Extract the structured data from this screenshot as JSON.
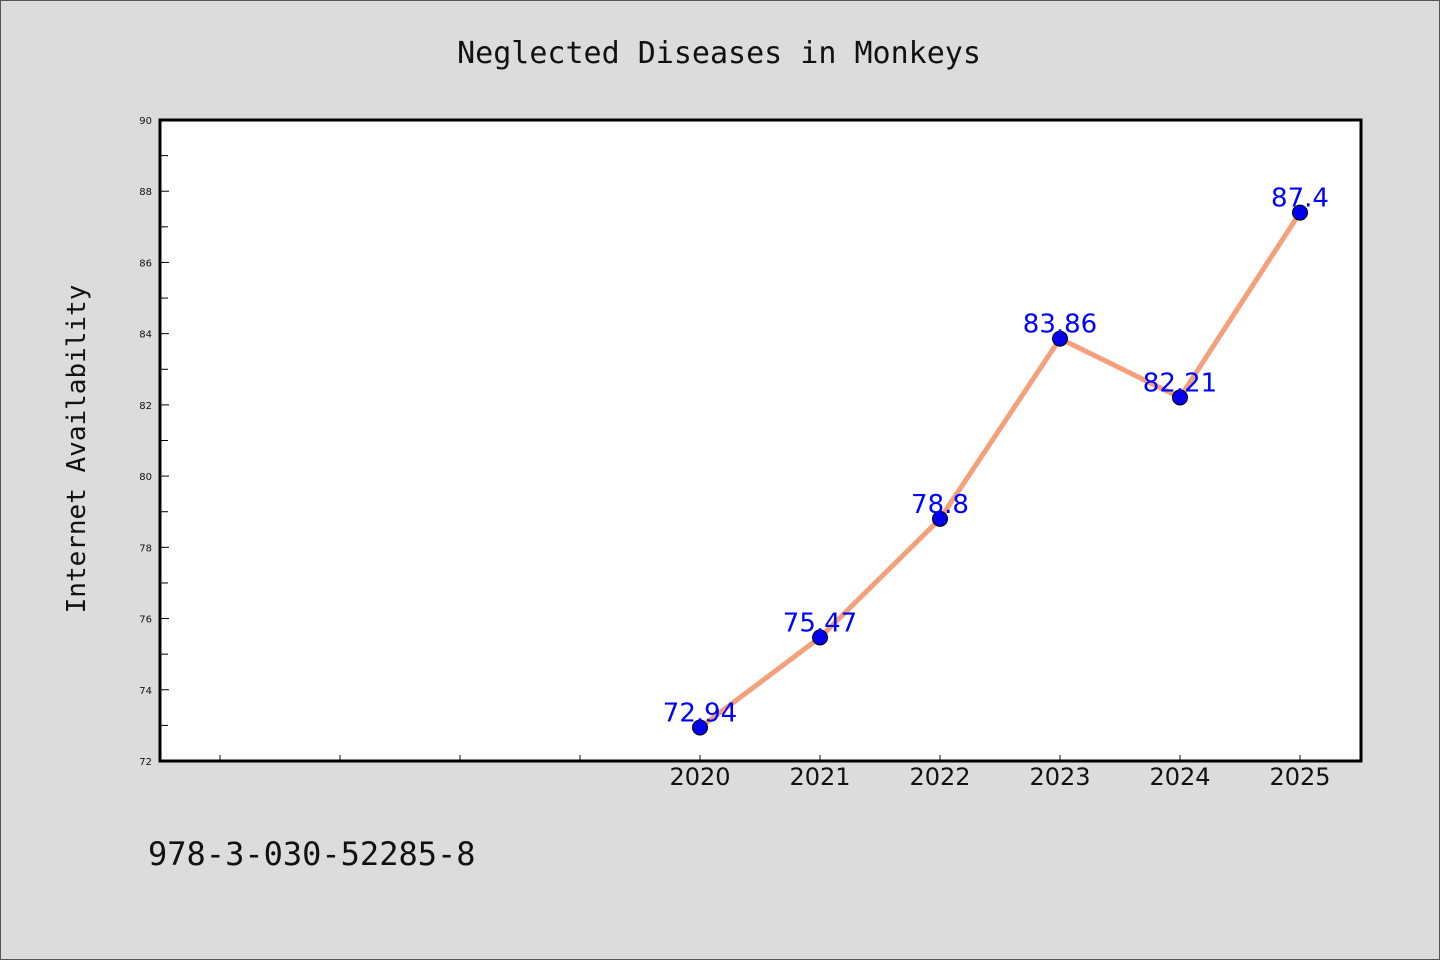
{
  "chart_data": {
    "type": "line",
    "title": "Neglected Diseases in Monkeys",
    "xlabel": "",
    "ylabel": "Internet Availability",
    "categories": [
      "2020",
      "2021",
      "2022",
      "2023",
      "2024",
      "2025"
    ],
    "x_slots": 10,
    "x_offset": 4,
    "series": [
      {
        "values": [
          72.94,
          75.47,
          78.8,
          83.86,
          82.21,
          87.4
        ]
      }
    ],
    "data_labels": [
      "72.94",
      "75.47",
      "78.8",
      "83.86",
      "82.21",
      "87.4"
    ],
    "ylim": [
      72,
      90
    ],
    "yticks": [
      72,
      74,
      76,
      78,
      80,
      82,
      84,
      86,
      88,
      90
    ],
    "grid": false,
    "legend": "none"
  },
  "footer": {
    "isbn": "978-3-030-52285-8"
  },
  "colors": {
    "background": "#dcdcdc",
    "plot_area": "#ffffff",
    "line": "#f4a07a",
    "marker": "#0000ee",
    "data_label": "#0000ff"
  }
}
